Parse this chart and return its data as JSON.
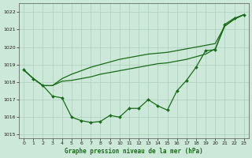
{
  "title": "Graphe pression niveau de la mer (hPa)",
  "background_color": "#cce8d8",
  "grid_color": "#aacfba",
  "line_color": "#1a6b1a",
  "xlim": [
    -0.5,
    23.5
  ],
  "ylim": [
    1014.8,
    1022.5
  ],
  "yticks": [
    1015,
    1016,
    1017,
    1018,
    1019,
    1020,
    1021,
    1022
  ],
  "xticks": [
    0,
    1,
    2,
    3,
    4,
    5,
    6,
    7,
    8,
    9,
    10,
    11,
    12,
    13,
    14,
    15,
    16,
    17,
    18,
    19,
    20,
    21,
    22,
    23
  ],
  "line_smooth1_x": [
    0,
    1,
    2,
    3,
    4,
    5,
    6,
    7,
    8,
    9,
    10,
    11,
    12,
    13,
    14,
    15,
    16,
    17,
    18,
    19,
    20,
    21,
    22,
    23
  ],
  "line_smooth1_y": [
    1018.7,
    1018.2,
    1017.8,
    1017.8,
    1018.05,
    1018.1,
    1018.2,
    1018.3,
    1018.45,
    1018.55,
    1018.65,
    1018.75,
    1018.85,
    1018.95,
    1019.05,
    1019.1,
    1019.2,
    1019.3,
    1019.45,
    1019.6,
    1019.9,
    1021.2,
    1021.6,
    1021.85
  ],
  "line_smooth2_x": [
    0,
    1,
    2,
    3,
    4,
    5,
    6,
    7,
    8,
    9,
    10,
    11,
    12,
    13,
    14,
    15,
    16,
    17,
    18,
    19,
    20,
    21,
    22,
    23
  ],
  "line_smooth2_y": [
    1018.7,
    1018.2,
    1017.8,
    1017.8,
    1018.2,
    1018.45,
    1018.65,
    1018.85,
    1019.0,
    1019.15,
    1019.3,
    1019.4,
    1019.5,
    1019.6,
    1019.65,
    1019.7,
    1019.8,
    1019.9,
    1020.0,
    1020.1,
    1020.2,
    1021.2,
    1021.6,
    1021.85
  ],
  "line_markers_x": [
    0,
    1,
    2,
    3,
    4,
    5,
    6,
    7,
    8,
    9,
    10,
    11,
    12,
    13,
    14,
    15,
    16,
    17,
    18,
    19,
    20,
    21,
    22,
    23
  ],
  "line_markers_y": [
    1018.7,
    1018.2,
    1017.8,
    1017.2,
    1017.1,
    1016.0,
    1015.8,
    1015.7,
    1015.75,
    1016.1,
    1016.0,
    1016.5,
    1016.5,
    1017.0,
    1016.65,
    1016.4,
    1017.5,
    1018.1,
    1018.85,
    1019.8,
    1019.85,
    1021.3,
    1021.65,
    1021.85
  ]
}
